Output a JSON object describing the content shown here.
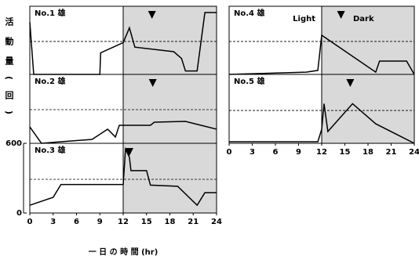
{
  "ylabel": "活動量(回)",
  "xlabel": "一 日 の 時 間 (hr)",
  "chart_data": [
    {
      "type": "line",
      "title": "No.1 雄",
      "xlim": [
        0,
        24
      ],
      "ylim": [
        0,
        600
      ],
      "dark_period": [
        12,
        24
      ],
      "marker_x": 15.7,
      "hline": 290,
      "x": [
        0,
        0.5,
        9,
        9.1,
        12,
        12.8,
        13.5,
        18.5,
        19.5,
        20,
        21.5,
        22.5,
        24
      ],
      "values": [
        460,
        0,
        0,
        190,
        280,
        410,
        240,
        200,
        140,
        30,
        30,
        545,
        545
      ]
    },
    {
      "type": "line",
      "title": "No.2 雄",
      "xlim": [
        0,
        24
      ],
      "ylim": [
        0,
        600
      ],
      "dark_period": [
        12,
        24
      ],
      "marker_x": 15.8,
      "hline": 293,
      "x": [
        0,
        1.5,
        4,
        8,
        10,
        11,
        11.5,
        15.5,
        16,
        20,
        24
      ],
      "values": [
        143,
        0,
        14,
        34,
        123,
        55,
        157,
        157,
        184,
        191,
        123
      ]
    },
    {
      "type": "line",
      "title": "No.3 雄",
      "xlim": [
        0,
        24
      ],
      "ylim": [
        0,
        600
      ],
      "dark_period": [
        12,
        24
      ],
      "marker_x": 12.8,
      "hline": 290,
      "yticks": [
        0,
        600
      ],
      "xticks": [
        0,
        3,
        6,
        9,
        12,
        15,
        18,
        21,
        24
      ],
      "x": [
        0,
        3,
        4,
        12,
        12.3,
        12.8,
        13,
        15,
        15.5,
        19,
        21.5,
        22.5,
        24
      ],
      "values": [
        67,
        135,
        245,
        245,
        550,
        480,
        365,
        365,
        240,
        230,
        67,
        175,
        175
      ]
    },
    {
      "type": "line",
      "title": "No.4 雄",
      "xlim": [
        0,
        24
      ],
      "ylim": [
        0,
        600
      ],
      "dark_period": [
        12,
        24
      ],
      "marker_x": 14.5,
      "hline": 290,
      "annotations": [
        "Light",
        "Dark"
      ],
      "x": [
        0,
        10,
        11.5,
        12,
        19,
        19.5,
        23,
        24
      ],
      "values": [
        0,
        20,
        35,
        345,
        20,
        117,
        117,
        0
      ]
    },
    {
      "type": "line",
      "title": "No.5 雄",
      "xlim": [
        0,
        24
      ],
      "ylim": [
        0,
        600
      ],
      "dark_period": [
        12,
        24
      ],
      "marker_x": 15.7,
      "hline": 286,
      "xticks": [
        0,
        3,
        6,
        9,
        12,
        15,
        18,
        21,
        24
      ],
      "x": [
        0,
        11.5,
        12,
        12.3,
        12.8,
        16,
        19,
        24
      ],
      "values": [
        14,
        14,
        123,
        345,
        103,
        345,
        170,
        0
      ]
    }
  ]
}
